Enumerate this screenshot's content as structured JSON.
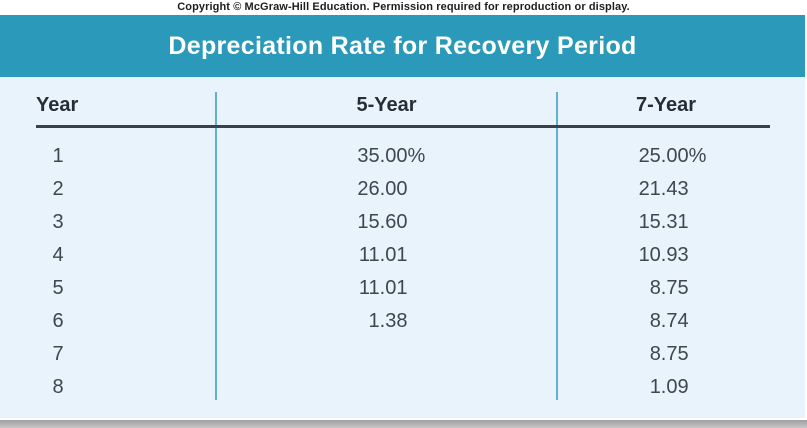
{
  "copyright": "Copyright © McGraw-Hill Education. Permission required for reproduction or display.",
  "title": "Depreciation Rate for Recovery Period",
  "table": {
    "columns": [
      "Year",
      "5-Year",
      "7-Year"
    ],
    "rows": [
      {
        "year": "1",
        "five": "35.00",
        "five_suffix": "%",
        "seven": "25.00",
        "seven_suffix": "%"
      },
      {
        "year": "2",
        "five": "26.00",
        "five_suffix": "",
        "seven": "21.43",
        "seven_suffix": ""
      },
      {
        "year": "3",
        "five": "15.60",
        "five_suffix": "",
        "seven": "15.31",
        "seven_suffix": ""
      },
      {
        "year": "4",
        "five": "11.01",
        "five_suffix": "",
        "seven": "10.93",
        "seven_suffix": ""
      },
      {
        "year": "5",
        "five": "11.01",
        "five_suffix": "",
        "seven": "8.75",
        "seven_suffix": ""
      },
      {
        "year": "6",
        "five": "1.38",
        "five_suffix": "",
        "seven": "8.74",
        "seven_suffix": ""
      },
      {
        "year": "7",
        "five": "",
        "five_suffix": "",
        "seven": "8.75",
        "seven_suffix": ""
      },
      {
        "year": "8",
        "five": "",
        "five_suffix": "",
        "seven": "1.09",
        "seven_suffix": ""
      }
    ]
  },
  "chart_data": {
    "type": "table",
    "title": "Depreciation Rate for Recovery Period",
    "categories": [
      1,
      2,
      3,
      4,
      5,
      6,
      7,
      8
    ],
    "series": [
      {
        "name": "5-Year",
        "values": [
          35.0,
          26.0,
          15.6,
          11.01,
          11.01,
          1.38,
          null,
          null
        ]
      },
      {
        "name": "7-Year",
        "values": [
          25.0,
          21.43,
          15.31,
          10.93,
          8.75,
          8.74,
          8.75,
          1.09
        ]
      }
    ],
    "unit": "percent"
  },
  "colors": {
    "header_teal": "#2A99BA",
    "table_bg": "#E8F3FB",
    "divider": "#60B2CB",
    "rule": "#3B414B",
    "text": "#3F4650",
    "bottom_bar": "#AAAAAC"
  }
}
